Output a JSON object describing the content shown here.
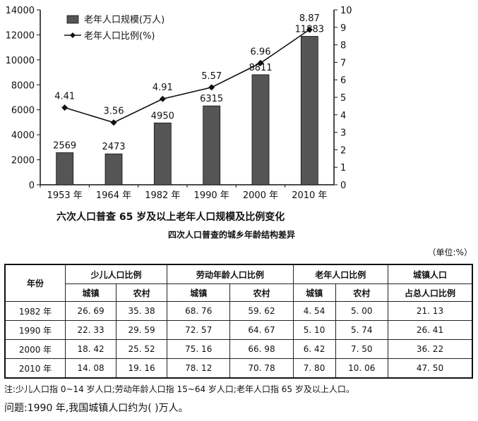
{
  "chart_data": {
    "type": "bar+line",
    "categories": [
      "1953 年",
      "1964 年",
      "1982 年",
      "1990 年",
      "2000 年",
      "2010 年"
    ],
    "series": [
      {
        "name": "老年人口规模(万人)",
        "type": "bar",
        "axis": "left",
        "values": [
          2569,
          2473,
          4950,
          6315,
          8811,
          11883
        ]
      },
      {
        "name": "老年人口比例(%)",
        "type": "line",
        "axis": "right",
        "values": [
          4.41,
          3.56,
          4.91,
          5.57,
          6.96,
          8.87
        ]
      }
    ],
    "title": "六次人口普查 65 岁及以上老年人口规模及比例变化",
    "left_axis": {
      "ylim": [
        0,
        14000
      ],
      "ticks": [
        0,
        2000,
        4000,
        6000,
        8000,
        10000,
        12000,
        14000
      ]
    },
    "right_axis": {
      "ylim": [
        0,
        10
      ],
      "ticks": [
        0,
        1,
        2,
        3,
        4,
        5,
        6,
        7,
        8,
        9,
        10
      ]
    },
    "legend": "top-left"
  },
  "table": {
    "title": "四次人口普查的城乡年龄结构差异",
    "unit": "（单位:%）",
    "header_year": "年份",
    "groups": [
      "少儿人口比例",
      "劳动年龄人口比例",
      "老年人口比例"
    ],
    "sub_headers": [
      "城镇",
      "农村"
    ],
    "last_header_line1": "城镇人口",
    "last_header_line2": "占总人口比例",
    "rows": [
      [
        "1982 年",
        "26. 69",
        "35. 38",
        "68. 76",
        "59. 62",
        "4. 54",
        "5. 00",
        "21. 13"
      ],
      [
        "1990 年",
        "22. 33",
        "29. 59",
        "72. 57",
        "64. 67",
        "5. 10",
        "5. 74",
        "26. 41"
      ],
      [
        "2000 年",
        "18. 42",
        "25. 52",
        "75. 16",
        "66. 98",
        "6. 42",
        "7. 50",
        "36. 22"
      ],
      [
        "2010 年",
        "14. 08",
        "19. 16",
        "78. 12",
        "70. 78",
        "7. 80",
        "10. 06",
        "47. 50"
      ]
    ]
  },
  "note": "注:少儿人口指 0~14 岁人口;劳动年龄人口指 15~64 岁人口;老年人口指 65 岁及以上人口。",
  "question": "问题:1990 年,我国城镇人口约为(    )万人。",
  "colors": {
    "bar_fill": "#555555",
    "line": "#111111"
  }
}
